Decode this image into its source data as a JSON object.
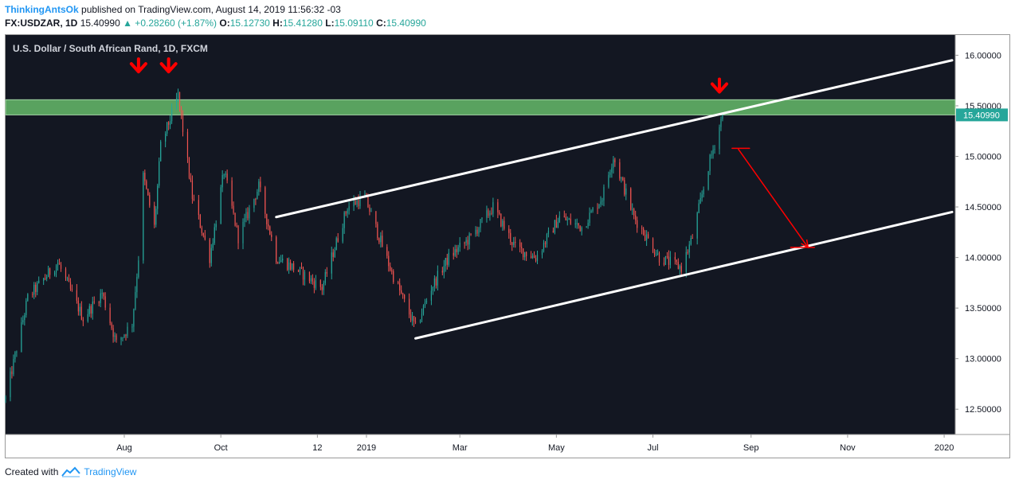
{
  "header": {
    "author": "ThinkingAntsOk",
    "published": "published on TradingView.com, August 14, 2019 11:56:32 -03",
    "symbol": "FX:USDZAR, 1D",
    "last": "15.40990",
    "change": "▲ +0.28260 (+1.87%)",
    "o_label": "O:",
    "o_val": "15.12730",
    "h_label": "H:",
    "h_val": "15.41280",
    "l_label": "L:",
    "l_val": "15.09110",
    "c_label": "C:",
    "c_val": "15.40990"
  },
  "footer": {
    "created_with": "Created with",
    "brand": "TradingView",
    "logo_icon": "tradingview-logo-icon"
  },
  "colors": {
    "background": "#131722",
    "up": "#26a69a",
    "down": "#ef5350",
    "zone": "#66bb6a",
    "channel": "#ffffff",
    "annotation": "#ff0000",
    "axis_text": "#131722"
  },
  "chart_data": {
    "type": "candlestick",
    "title": "U.S. Dollar / South African Rand, 1D, FXCM",
    "current_price_label": "15.40990",
    "ylim": [
      12.25,
      16.2
    ],
    "y_ticks": [
      "16.00000",
      "15.50000",
      "15.00000",
      "14.50000",
      "14.00000",
      "13.50000",
      "13.00000",
      "12.50000"
    ],
    "y_tick_values": [
      16.0,
      15.5,
      15.0,
      14.5,
      14.0,
      13.5,
      13.0,
      12.5
    ],
    "x_ticks": [
      {
        "label": "Aug",
        "date": "2018-08-01"
      },
      {
        "label": "Oct",
        "date": "2018-10-01"
      },
      {
        "label": "12",
        "date": "2018-12-01"
      },
      {
        "label": "2019",
        "date": "2019-01-01"
      },
      {
        "label": "Mar",
        "date": "2019-03-01"
      },
      {
        "label": "May",
        "date": "2019-05-01"
      },
      {
        "label": "Jul",
        "date": "2019-07-01"
      },
      {
        "label": "Sep",
        "date": "2019-09-01"
      },
      {
        "label": "Nov",
        "date": "2019-11-01"
      },
      {
        "label": "2020",
        "date": "2020-01-01"
      }
    ],
    "xlim": [
      "2018-05-18",
      "2020-01-08"
    ],
    "series": [
      {
        "keypoints": [
          {
            "date": "2018-05-18",
            "value": 12.6
          },
          {
            "date": "2018-06-01",
            "value": 13.6
          },
          {
            "date": "2018-06-20",
            "value": 13.95
          },
          {
            "date": "2018-07-06",
            "value": 13.4
          },
          {
            "date": "2018-07-18",
            "value": 13.65
          },
          {
            "date": "2018-07-27",
            "value": 13.15
          },
          {
            "date": "2018-08-06",
            "value": 13.35
          },
          {
            "date": "2018-08-10",
            "value": 14.0
          },
          {
            "date": "2018-08-13",
            "value": 14.8
          },
          {
            "date": "2018-08-20",
            "value": 14.3
          },
          {
            "date": "2018-08-24",
            "value": 15.1
          },
          {
            "date": "2018-09-04",
            "value": 15.6
          },
          {
            "date": "2018-09-13",
            "value": 14.6
          },
          {
            "date": "2018-09-24",
            "value": 14.0
          },
          {
            "date": "2018-10-03",
            "value": 14.85
          },
          {
            "date": "2018-10-12",
            "value": 14.2
          },
          {
            "date": "2018-10-25",
            "value": 14.7
          },
          {
            "date": "2018-11-05",
            "value": 14.0
          },
          {
            "date": "2018-11-16",
            "value": 13.9
          },
          {
            "date": "2018-12-04",
            "value": 13.7
          },
          {
            "date": "2018-12-20",
            "value": 14.5
          },
          {
            "date": "2018-12-31",
            "value": 14.6
          },
          {
            "date": "2019-01-17",
            "value": 13.85
          },
          {
            "date": "2019-02-01",
            "value": 13.3
          },
          {
            "date": "2019-02-11",
            "value": 13.7
          },
          {
            "date": "2019-02-22",
            "value": 14.0
          },
          {
            "date": "2019-03-08",
            "value": 14.2
          },
          {
            "date": "2019-03-22",
            "value": 14.5
          },
          {
            "date": "2019-04-05",
            "value": 14.1
          },
          {
            "date": "2019-04-18",
            "value": 14.0
          },
          {
            "date": "2019-05-03",
            "value": 14.4
          },
          {
            "date": "2019-05-17",
            "value": 14.3
          },
          {
            "date": "2019-05-30",
            "value": 14.6
          },
          {
            "date": "2019-06-06",
            "value": 15.0
          },
          {
            "date": "2019-06-19",
            "value": 14.4
          },
          {
            "date": "2019-07-05",
            "value": 14.0
          },
          {
            "date": "2019-07-19",
            "value": 13.9
          },
          {
            "date": "2019-07-26",
            "value": 14.2
          },
          {
            "date": "2019-08-05",
            "value": 14.9
          },
          {
            "date": "2019-08-14",
            "value": 15.41
          }
        ]
      }
    ],
    "resistance_zone": {
      "low": 15.41,
      "high": 15.56
    },
    "upper_channel": {
      "start": {
        "date": "2018-11-05",
        "value": 14.4
      },
      "end": {
        "date": "2020-01-06",
        "value": 15.95
      }
    },
    "lower_channel": {
      "start": {
        "date": "2019-02-01",
        "value": 13.2
      },
      "end": {
        "date": "2020-01-06",
        "value": 14.45
      }
    },
    "arrows_down": [
      {
        "date": "2018-08-10",
        "value": 15.9
      },
      {
        "date": "2018-08-29",
        "value": 15.9
      },
      {
        "date": "2019-08-12",
        "value": 15.7
      }
    ],
    "projection": {
      "hline": {
        "start": {
          "date": "2019-08-20",
          "value": 15.08
        },
        "end": {
          "date": "2019-08-31",
          "value": 15.08
        }
      },
      "arrow": {
        "start": {
          "date": "2019-08-24",
          "value": 15.07
        },
        "end": {
          "date": "2019-10-07",
          "value": 14.1
        }
      },
      "target_hline": {
        "start": {
          "date": "2019-09-26",
          "value": 14.1
        },
        "end": {
          "date": "2019-10-11",
          "value": 14.1
        }
      }
    }
  }
}
